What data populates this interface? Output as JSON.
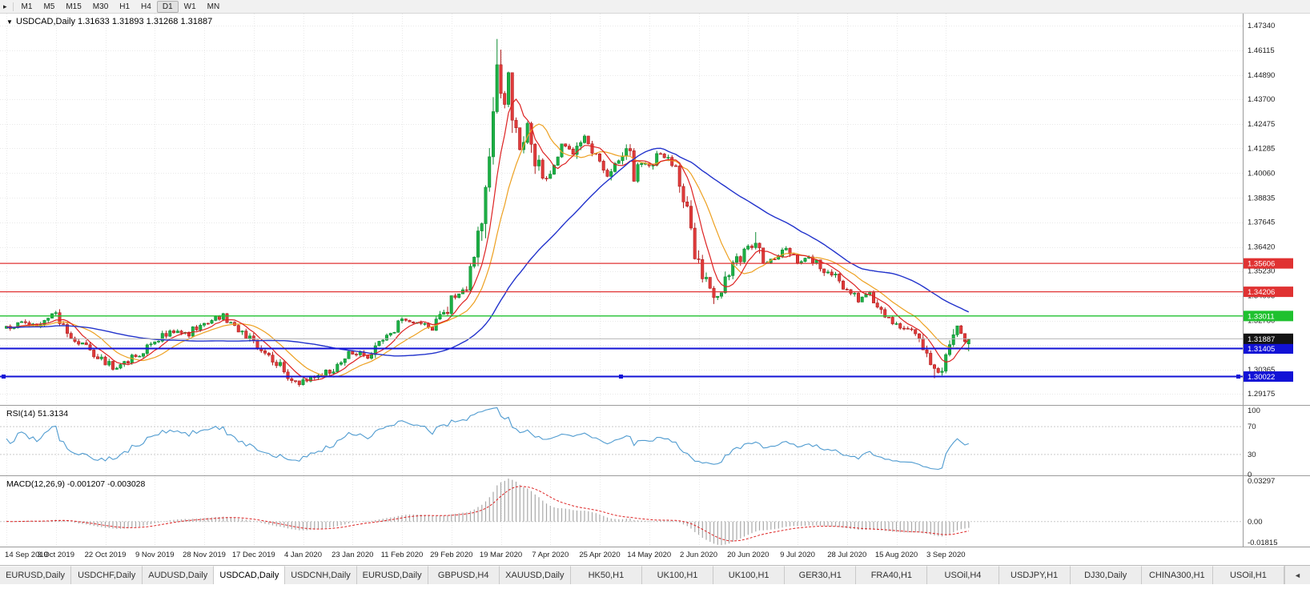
{
  "toolbar": {
    "expander_icon": "▸",
    "timeframes": [
      "M1",
      "M5",
      "M15",
      "M30",
      "H1",
      "H4",
      "D1",
      "W1",
      "MN"
    ],
    "active_timeframe": "D1"
  },
  "chart_header": {
    "collapse_icon": "▼",
    "symbol": "USDCAD,Daily",
    "open": "1.31633",
    "high": "1.31893",
    "low": "1.31268",
    "close": "1.31887"
  },
  "price_axis": {
    "ticks": [
      "1.47340",
      "1.46115",
      "1.44890",
      "1.43700",
      "1.42475",
      "1.41285",
      "1.40060",
      "1.38835",
      "1.37645",
      "1.36420",
      "1.35230",
      "1.34005",
      "1.32780",
      "1.31590",
      "1.30365",
      "1.29175"
    ],
    "current_price_label": "1.31887"
  },
  "current_price": 1.31887,
  "levels": [
    {
      "label": "1.35606",
      "value": 1.35606,
      "color": "#e03232",
      "width": 1.2,
      "selected": false
    },
    {
      "label": "1.34206",
      "value": 1.34206,
      "color": "#e03232",
      "width": 1.2,
      "selected": false
    },
    {
      "label": "1.33011",
      "value": 1.33011,
      "color": "#1fc12f",
      "width": 1.4,
      "selected": false
    },
    {
      "label": "1.31405",
      "value": 1.31405,
      "color": "#1212d6",
      "width": 2,
      "selected": false
    },
    {
      "label": "1.30022",
      "value": 1.30022,
      "color": "#1212d6",
      "width": 2,
      "selected": true
    }
  ],
  "rsi": {
    "label": "RSI(14)",
    "value": "51.3134",
    "levels": [
      "100",
      "70",
      "30",
      "0"
    ]
  },
  "macd": {
    "label": "MACD(12,26,9)",
    "values": "-0.001207 -0.003028",
    "levels": [
      "0.03297",
      "0.00",
      "-0.01815"
    ],
    "max": 0.03297,
    "min": -0.01815
  },
  "date_axis": [
    "14 Sep 2019",
    "3 Oct 2019",
    "22 Oct 2019",
    "9 Nov 2019",
    "28 Nov 2019",
    "17 Dec 2019",
    "4 Jan 2020",
    "23 Jan 2020",
    "11 Feb 2020",
    "29 Feb 2020",
    "19 Mar 2020",
    "7 Apr 2020",
    "25 Apr 2020",
    "14 May 2020",
    "2 Jun 2020",
    "20 Jun 2020",
    "9 Jul 2020",
    "28 Jul 2020",
    "15 Aug 2020",
    "3 Sep 2020"
  ],
  "tabs": {
    "items": [
      "EURUSD,Daily",
      "USDCHF,Daily",
      "AUDUSD,Daily",
      "USDCAD,Daily",
      "USDCNH,Daily",
      "EURUSD,Daily",
      "GBPUSD,H4",
      "XAUUSD,Daily",
      "HK50,H1",
      "UK100,H1",
      "UK100,H1",
      "GER30,H1",
      "FRA40,H1",
      "USOil,H4",
      "USDJPY,H1",
      "DJ30,Daily",
      "CHINA300,H1",
      "USOil,H1"
    ],
    "active_index": 3,
    "scroll_left_icon": "◄"
  },
  "colors": {
    "candle_up": "#1db045",
    "candle_up_border": "#0e8c32",
    "candle_down": "#e03b3b",
    "candle_down_border": "#b02020",
    "ma_fast": "#dd2222",
    "ma_mid": "#eda020",
    "ma_slow": "#2233cc",
    "rsi": "#4f9bd0",
    "macd_hist": "#a8a8a8",
    "macd_signal": "#dd2222",
    "grid": "#e9e9e9",
    "separator": "#9b9b9b",
    "axis_text": "#1c1c1c",
    "current_price_bg": "#141414",
    "current_price_line": "#b4b4b4"
  },
  "chart_data": {
    "type": "candlestick",
    "symbol": "USDCAD",
    "timeframe": "Daily",
    "candle_count": 254,
    "candles_per_label": 13,
    "seed": 20,
    "ma_periods": {
      "fast": 7,
      "mid": 14,
      "slow": 45
    },
    "price_anchors": [
      [
        0,
        1.3245
      ],
      [
        4,
        1.3268
      ],
      [
        8,
        1.3242
      ],
      [
        13,
        1.331
      ],
      [
        17,
        1.3205
      ],
      [
        22,
        1.312
      ],
      [
        28,
        1.3048
      ],
      [
        32,
        1.3075
      ],
      [
        36,
        1.313
      ],
      [
        39,
        1.3175
      ],
      [
        44,
        1.323
      ],
      [
        48,
        1.3215
      ],
      [
        52,
        1.3272
      ],
      [
        57,
        1.3305
      ],
      [
        61,
        1.324
      ],
      [
        65,
        1.3165
      ],
      [
        70,
        1.3095
      ],
      [
        74,
        1.301
      ],
      [
        77,
        1.2962
      ],
      [
        80,
        1.2988
      ],
      [
        85,
        1.303
      ],
      [
        91,
        1.3125
      ],
      [
        95,
        1.3105
      ],
      [
        100,
        1.319
      ],
      [
        104,
        1.3285
      ],
      [
        108,
        1.326
      ],
      [
        112,
        1.324
      ],
      [
        115,
        1.331
      ],
      [
        117,
        1.3395
      ],
      [
        120,
        1.342
      ],
      [
        123,
        1.356
      ],
      [
        126,
        1.387
      ],
      [
        128,
        1.428
      ],
      [
        129,
        1.45
      ],
      [
        130,
        1.442
      ],
      [
        131,
        1.433
      ],
      [
        132,
        1.448
      ],
      [
        133,
        1.426
      ],
      [
        135,
        1.411
      ],
      [
        137,
        1.424
      ],
      [
        139,
        1.409
      ],
      [
        141,
        1.396
      ],
      [
        143,
        1.403
      ],
      [
        146,
        1.414
      ],
      [
        149,
        1.409
      ],
      [
        152,
        1.418
      ],
      [
        154,
        1.41
      ],
      [
        156,
        1.406
      ],
      [
        158,
        1.4
      ],
      [
        161,
        1.409
      ],
      [
        163,
        1.4135
      ],
      [
        165,
        1.3985
      ],
      [
        167,
        1.405
      ],
      [
        169,
        1.4035
      ],
      [
        172,
        1.411
      ],
      [
        175,
        1.406
      ],
      [
        177,
        1.3955
      ],
      [
        180,
        1.376
      ],
      [
        182,
        1.356
      ],
      [
        184,
        1.347
      ],
      [
        186,
        1.3395
      ],
      [
        188,
        1.343
      ],
      [
        191,
        1.3545
      ],
      [
        194,
        1.362
      ],
      [
        197,
        1.365
      ],
      [
        199,
        1.356
      ],
      [
        202,
        1.359
      ],
      [
        205,
        1.3625
      ],
      [
        208,
        1.357
      ],
      [
        211,
        1.3595
      ],
      [
        214,
        1.355
      ],
      [
        217,
        1.3505
      ],
      [
        220,
        1.345
      ],
      [
        222,
        1.3415
      ],
      [
        224,
        1.338
      ],
      [
        226,
        1.3415
      ],
      [
        229,
        1.337
      ],
      [
        231,
        1.331
      ],
      [
        234,
        1.3265
      ],
      [
        237,
        1.324
      ],
      [
        239,
        1.319
      ],
      [
        241,
        1.3135
      ],
      [
        243,
        1.306
      ],
      [
        245,
        1.3025
      ],
      [
        247,
        1.308
      ],
      [
        249,
        1.318
      ],
      [
        250,
        1.3245
      ],
      [
        251,
        1.3215
      ],
      [
        252,
        1.3165
      ],
      [
        253,
        1.31887
      ]
    ],
    "wick_overrides": [
      {
        "i": 77,
        "low": 1.2952
      },
      {
        "i": 129,
        "high": 1.4668
      },
      {
        "i": 130,
        "high": 1.4615
      },
      {
        "i": 186,
        "low": 1.336
      },
      {
        "i": 197,
        "high": 1.3715
      },
      {
        "i": 244,
        "low": 1.2994
      }
    ],
    "last_candle": {
      "open": 1.31633,
      "high": 1.31893,
      "low": 1.31268,
      "close": 1.31887
    }
  }
}
